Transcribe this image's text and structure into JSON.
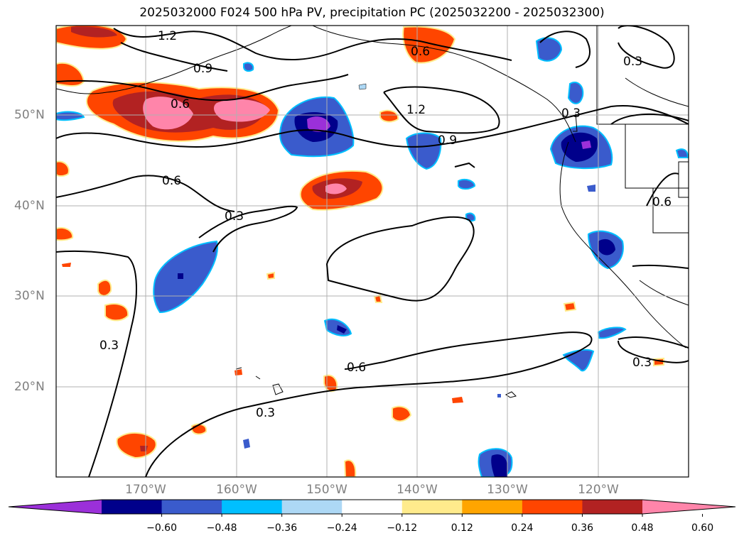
{
  "title": "2025032000 F024 500 hPa PV, precipitation PC (2025032200 - 2025032300)",
  "lat_labels": [
    "50°N",
    "40°N",
    "30°N",
    "20°N"
  ],
  "lon_labels": [
    "170°W",
    "160°W",
    "150°W",
    "140°W",
    "130°W",
    "120°W"
  ],
  "contour_labels": [
    "1.2",
    "0.9",
    "0.6",
    "1.2",
    "0.9",
    "0.6",
    "0.3",
    "0.3",
    "0.6",
    "0.3",
    "0.6",
    "0.3",
    "0.3",
    "0.3",
    "0.6"
  ],
  "colorbar": {
    "ticks": [
      "−0.60",
      "−0.48",
      "−0.36",
      "−0.24",
      "−0.12",
      "0.12",
      "0.24",
      "0.36",
      "0.48",
      "0.60"
    ],
    "colors": [
      "#9b30d9",
      "#00008b",
      "#3a5bcc",
      "#00bfff",
      "#add8f5",
      "#ffffff",
      "#ffeb8c",
      "#ffa500",
      "#ff4500",
      "#b22222",
      "#ff85aa"
    ]
  }
}
